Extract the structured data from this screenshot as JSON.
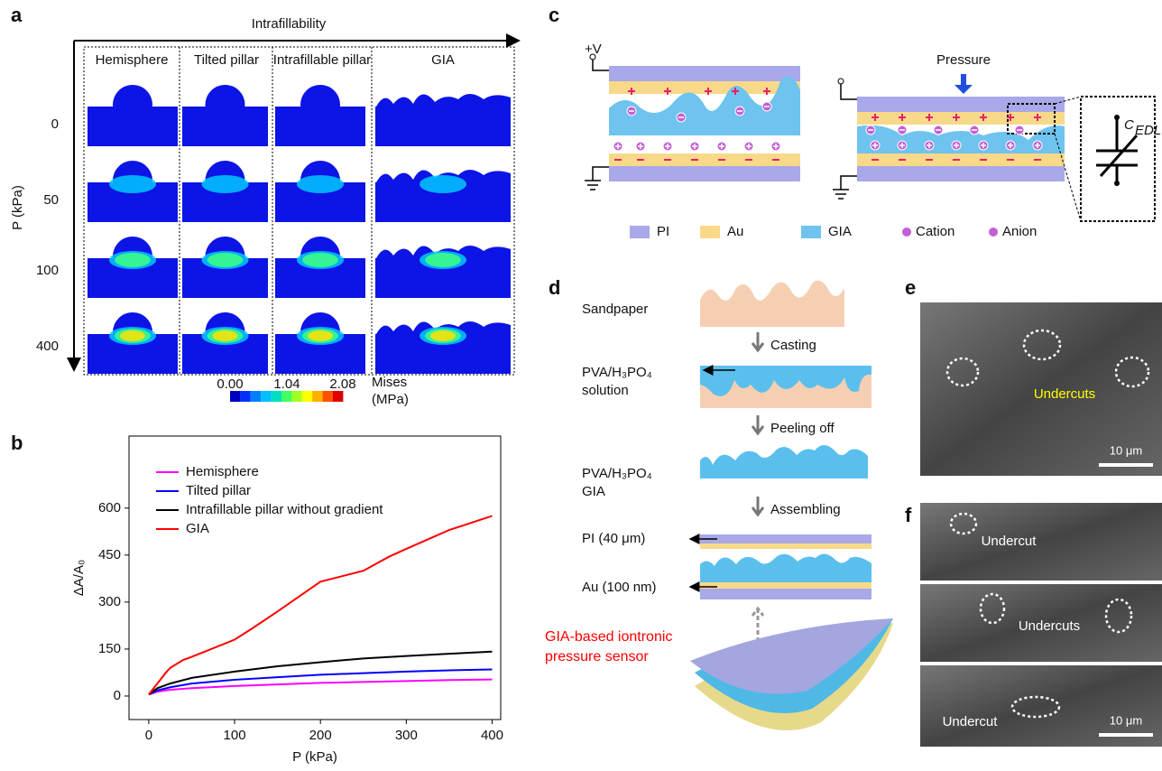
{
  "panel_labels": [
    "a",
    "b",
    "c",
    "d",
    "e",
    "f"
  ],
  "panel_a": {
    "axis_top": "Intrafillability",
    "columns": [
      "Hemisphere",
      "Tilted pillar",
      "Intrafillable pillar",
      "GIA"
    ],
    "rows": [
      "0",
      "50",
      "100",
      "400"
    ],
    "axis_left": "P (kPa)",
    "colorbar": {
      "ticks": [
        "0.00",
        "1.04",
        "2.08"
      ],
      "label": [
        "Mises",
        "(MPa)"
      ]
    }
  },
  "chart_data": {
    "type": "line",
    "xlabel": "P (kPa)",
    "ylabel": "ΔA/A₀",
    "xlim": [
      -23,
      410
    ],
    "ylim": [
      -75,
      830
    ],
    "xticks": [
      0,
      100,
      200,
      300,
      400
    ],
    "yticks": [
      0,
      150,
      300,
      450,
      600
    ],
    "legend": "upper left",
    "series": [
      {
        "name": "Hemisphere",
        "color": "#ff00ff",
        "x": [
          0,
          10,
          25,
          50,
          100,
          150,
          200,
          250,
          300,
          350,
          400
        ],
        "values": [
          5,
          14,
          20,
          25,
          32,
          37,
          42,
          45,
          48,
          51,
          53
        ]
      },
      {
        "name": "Tilted pillar",
        "color": "#0000ff",
        "x": [
          0,
          10,
          25,
          50,
          100,
          150,
          200,
          250,
          300,
          350,
          400
        ],
        "values": [
          5,
          18,
          28,
          40,
          52,
          60,
          68,
          73,
          78,
          82,
          85
        ]
      },
      {
        "name": "Intrafillable pillar without gradient",
        "color": "#000000",
        "x": [
          0,
          10,
          25,
          50,
          100,
          150,
          200,
          250,
          300,
          350,
          400
        ],
        "values": [
          5,
          25,
          40,
          58,
          78,
          95,
          108,
          120,
          128,
          135,
          142
        ]
      },
      {
        "name": "GIA",
        "color": "#ff0000",
        "x": [
          0,
          10,
          20,
          25,
          40,
          50,
          100,
          120,
          150,
          200,
          250,
          280,
          300,
          350,
          400
        ],
        "values": [
          5,
          40,
          75,
          90,
          115,
          125,
          180,
          215,
          270,
          365,
          400,
          445,
          470,
          530,
          575
        ]
      }
    ]
  },
  "panel_c": {
    "voltage": "+V",
    "pressure": "Pressure",
    "capacitance": {
      "symbol": "C",
      "subscript": "EDL"
    },
    "legend": [
      "PI",
      "Au",
      "GIA",
      "Cation",
      "Anion"
    ]
  },
  "panel_d": {
    "sandpaper": "Sandpaper",
    "casting": "Casting",
    "solution": [
      "PVA/H₃PO₄",
      "solution"
    ],
    "peeling": "Peeling off",
    "gia": [
      "PVA/H₃PO₄",
      "GIA"
    ],
    "assembling": "Assembling",
    "pi": "PI (40 μm)",
    "au": "Au (100 nm)",
    "sensor": [
      "GIA-based iontronic",
      "pressure sensor"
    ]
  },
  "panel_e": {
    "annotation": "Undercuts",
    "scale": "10 μm"
  },
  "panel_f": {
    "annotations": [
      "Undercut",
      "Undercuts",
      "Undercut"
    ],
    "scale": "10 μm"
  }
}
